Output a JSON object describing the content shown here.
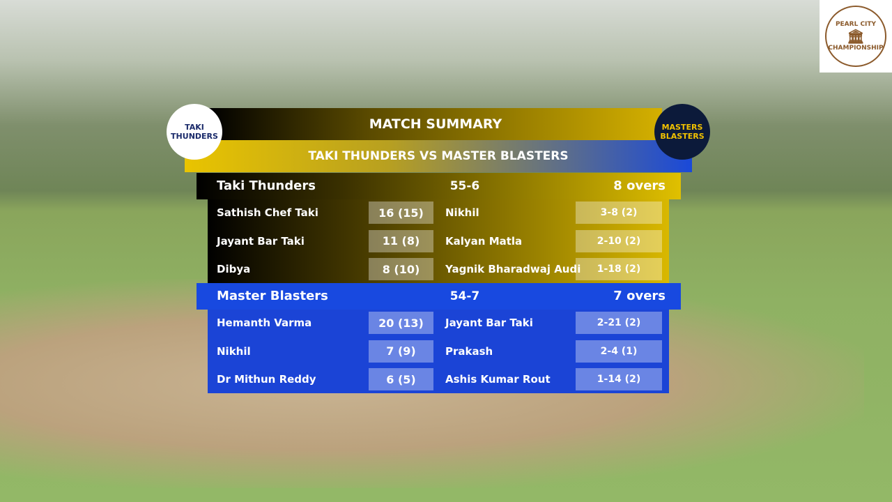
{
  "header": {
    "title": "MATCH SUMMARY",
    "subtitle": "TAKI THUNDERS VS MASTER BLASTERS"
  },
  "logos": {
    "left": "TAKI THUNDERS",
    "right": "MASTERS BLASTERS",
    "corner_top": "PEARL CITY",
    "corner_bottom": "CHAMPIONSHIP"
  },
  "teams": [
    {
      "name": "Taki Thunders",
      "score": "55-6",
      "overs": "8 overs",
      "rows": [
        {
          "batter": "Sathish Chef Taki",
          "runs": "16 (15)",
          "bowler": "Nikhil",
          "figures": "3-8 (2)"
        },
        {
          "batter": "Jayant Bar Taki",
          "runs": "11 (8)",
          "bowler": "Kalyan Matla",
          "figures": "2-10 (2)"
        },
        {
          "batter": "Dibya",
          "runs": "8 (10)",
          "bowler": "Yagnik Bharadwaj Audi",
          "figures": "1-18 (2)"
        }
      ]
    },
    {
      "name": "Master Blasters",
      "score": "54-7",
      "overs": "7 overs",
      "rows": [
        {
          "batter": "Hemanth Varma",
          "runs": "20 (13)",
          "bowler": "Jayant Bar Taki",
          "figures": "2-21 (2)"
        },
        {
          "batter": "Nikhil",
          "runs": "7 (9)",
          "bowler": "Prakash",
          "figures": "2-4 (1)"
        },
        {
          "batter": "Dr Mithun Reddy",
          "runs": "6 (5)",
          "bowler": "Ashis Kumar Rout",
          "figures": "1-14 (2)"
        }
      ]
    }
  ]
}
